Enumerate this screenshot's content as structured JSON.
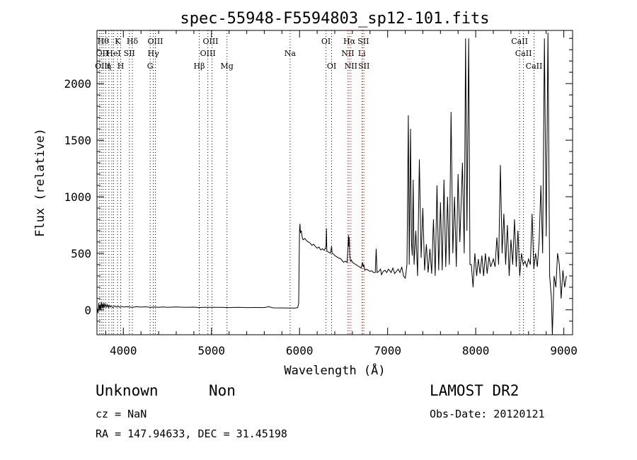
{
  "chart_data": {
    "type": "line",
    "title": "spec-55948-F5594803_sp12-101.fits",
    "xlabel": "Wavelength (Å)",
    "ylabel": "Flux (relative)",
    "xlim": [
      3700,
      9100
    ],
    "ylim": [
      -220,
      2470
    ],
    "xticks": [
      4000,
      5000,
      6000,
      7000,
      8000,
      9000
    ],
    "yticks": [
      0,
      500,
      1000,
      1500,
      2000
    ],
    "grid": false,
    "series": [
      {
        "color": "#000000",
        "points": [
          [
            3705,
            10
          ],
          [
            3712,
            -30
          ],
          [
            3720,
            60
          ],
          [
            3728,
            0
          ],
          [
            3735,
            45
          ],
          [
            3742,
            -5
          ],
          [
            3750,
            70
          ],
          [
            3758,
            15
          ],
          [
            3765,
            55
          ],
          [
            3772,
            10
          ],
          [
            3780,
            60
          ],
          [
            3790,
            20
          ],
          [
            3800,
            50
          ],
          [
            3810,
            25
          ],
          [
            3820,
            45
          ],
          [
            3830,
            20
          ],
          [
            3840,
            40
          ],
          [
            3850,
            25
          ],
          [
            3860,
            35
          ],
          [
            3880,
            20
          ],
          [
            3900,
            35
          ],
          [
            3920,
            25
          ],
          [
            3940,
            32
          ],
          [
            3960,
            22
          ],
          [
            3980,
            30
          ],
          [
            4000,
            25
          ],
          [
            4050,
            28
          ],
          [
            4100,
            22
          ],
          [
            4150,
            28
          ],
          [
            4200,
            24
          ],
          [
            4250,
            27
          ],
          [
            4300,
            23
          ],
          [
            4350,
            26
          ],
          [
            4400,
            22
          ],
          [
            4450,
            25
          ],
          [
            4500,
            23
          ],
          [
            4600,
            25
          ],
          [
            4700,
            22
          ],
          [
            4800,
            24
          ],
          [
            4860,
            20
          ],
          [
            4900,
            23
          ],
          [
            5000,
            22
          ],
          [
            5100,
            23
          ],
          [
            5200,
            20
          ],
          [
            5300,
            22
          ],
          [
            5400,
            20
          ],
          [
            5500,
            21
          ],
          [
            5600,
            20
          ],
          [
            5650,
            28
          ],
          [
            5700,
            18
          ],
          [
            5800,
            17
          ],
          [
            5900,
            16
          ],
          [
            5950,
            15
          ],
          [
            5980,
            20
          ],
          [
            5990,
            60
          ],
          [
            5995,
            400
          ],
          [
            6000,
            700
          ],
          [
            6005,
            760
          ],
          [
            6010,
            680
          ],
          [
            6020,
            700
          ],
          [
            6030,
            640
          ],
          [
            6040,
            620
          ],
          [
            6060,
            630
          ],
          [
            6080,
            610
          ],
          [
            6100,
            600
          ],
          [
            6120,
            590
          ],
          [
            6140,
            570
          ],
          [
            6160,
            580
          ],
          [
            6180,
            560
          ],
          [
            6200,
            545
          ],
          [
            6220,
            555
          ],
          [
            6240,
            530
          ],
          [
            6260,
            540
          ],
          [
            6280,
            525
          ],
          [
            6300,
            560
          ],
          [
            6305,
            720
          ],
          [
            6310,
            520
          ],
          [
            6330,
            510
          ],
          [
            6350,
            500
          ],
          [
            6364,
            560
          ],
          [
            6370,
            500
          ],
          [
            6390,
            490
          ],
          [
            6400,
            480
          ],
          [
            6420,
            470
          ],
          [
            6440,
            460
          ],
          [
            6460,
            455
          ],
          [
            6480,
            440
          ],
          [
            6500,
            420
          ],
          [
            6520,
            430
          ],
          [
            6540,
            420
          ],
          [
            6550,
            550
          ],
          [
            6555,
            660
          ],
          [
            6560,
            560
          ],
          [
            6565,
            640
          ],
          [
            6570,
            480
          ],
          [
            6580,
            430
          ],
          [
            6590,
            440
          ],
          [
            6600,
            420
          ],
          [
            6620,
            410
          ],
          [
            6640,
            400
          ],
          [
            6660,
            390
          ],
          [
            6680,
            380
          ],
          [
            6700,
            370
          ],
          [
            6716,
            420
          ],
          [
            6722,
            380
          ],
          [
            6731,
            400
          ],
          [
            6740,
            350
          ],
          [
            6760,
            360
          ],
          [
            6780,
            350
          ],
          [
            6800,
            340
          ],
          [
            6820,
            345
          ],
          [
            6840,
            330
          ],
          [
            6860,
            330
          ],
          [
            6870,
            540
          ],
          [
            6880,
            330
          ],
          [
            6900,
            340
          ],
          [
            6920,
            360
          ],
          [
            6930,
            310
          ],
          [
            6950,
            340
          ],
          [
            6970,
            350
          ],
          [
            6990,
            330
          ],
          [
            7010,
            360
          ],
          [
            7040,
            330
          ],
          [
            7060,
            370
          ],
          [
            7080,
            320
          ],
          [
            7100,
            340
          ],
          [
            7120,
            360
          ],
          [
            7140,
            330
          ],
          [
            7160,
            380
          ],
          [
            7180,
            300
          ],
          [
            7200,
            280
          ],
          [
            7220,
            400
          ],
          [
            7235,
            1720
          ],
          [
            7245,
            400
          ],
          [
            7260,
            1600
          ],
          [
            7270,
            600
          ],
          [
            7280,
            480
          ],
          [
            7290,
            1150
          ],
          [
            7300,
            400
          ],
          [
            7320,
            700
          ],
          [
            7340,
            300
          ],
          [
            7360,
            1330
          ],
          [
            7380,
            460
          ],
          [
            7400,
            900
          ],
          [
            7420,
            350
          ],
          [
            7440,
            580
          ],
          [
            7460,
            330
          ],
          [
            7480,
            540
          ],
          [
            7500,
            320
          ],
          [
            7520,
            800
          ],
          [
            7540,
            300
          ],
          [
            7560,
            1100
          ],
          [
            7580,
            350
          ],
          [
            7600,
            950
          ],
          [
            7620,
            350
          ],
          [
            7640,
            1150
          ],
          [
            7660,
            380
          ],
          [
            7680,
            1000
          ],
          [
            7700,
            400
          ],
          [
            7720,
            1750
          ],
          [
            7740,
            500
          ],
          [
            7760,
            1000
          ],
          [
            7780,
            380
          ],
          [
            7800,
            1200
          ],
          [
            7820,
            600
          ],
          [
            7850,
            1300
          ],
          [
            7870,
            500
          ],
          [
            7885,
            2400
          ],
          [
            7900,
            700
          ],
          [
            7920,
            2400
          ],
          [
            7935,
            400
          ],
          [
            7950,
            400
          ],
          [
            7970,
            200
          ],
          [
            7990,
            500
          ],
          [
            8010,
            300
          ],
          [
            8030,
            450
          ],
          [
            8050,
            320
          ],
          [
            8070,
            480
          ],
          [
            8090,
            300
          ],
          [
            8110,
            500
          ],
          [
            8130,
            320
          ],
          [
            8150,
            470
          ],
          [
            8170,
            380
          ],
          [
            8200,
            450
          ],
          [
            8220,
            380
          ],
          [
            8240,
            640
          ],
          [
            8260,
            400
          ],
          [
            8280,
            1280
          ],
          [
            8300,
            500
          ],
          [
            8320,
            850
          ],
          [
            8340,
            400
          ],
          [
            8360,
            750
          ],
          [
            8380,
            300
          ],
          [
            8400,
            620
          ],
          [
            8420,
            400
          ],
          [
            8440,
            800
          ],
          [
            8460,
            380
          ],
          [
            8480,
            700
          ],
          [
            8500,
            300
          ],
          [
            8520,
            500
          ],
          [
            8540,
            400
          ],
          [
            8560,
            430
          ],
          [
            8580,
            380
          ],
          [
            8600,
            450
          ],
          [
            8620,
            400
          ],
          [
            8640,
            850
          ],
          [
            8660,
            360
          ],
          [
            8680,
            500
          ],
          [
            8700,
            380
          ],
          [
            8720,
            600
          ],
          [
            8740,
            1100
          ],
          [
            8760,
            500
          ],
          [
            8780,
            2400
          ],
          [
            8800,
            650
          ],
          [
            8820,
            2450
          ],
          [
            8840,
            300
          ],
          [
            8860,
            100
          ],
          [
            8870,
            -230
          ],
          [
            8890,
            300
          ],
          [
            8910,
            200
          ],
          [
            8930,
            500
          ],
          [
            8950,
            400
          ],
          [
            8970,
            100
          ],
          [
            8990,
            350
          ],
          [
            9010,
            200
          ],
          [
            9030,
            300
          ]
        ]
      }
    ],
    "lines": [
      {
        "wl": 3730,
        "color": "#000000"
      },
      {
        "wl": 3750,
        "color": "#000000"
      },
      {
        "wl": 3771,
        "color": "#000000"
      },
      {
        "wl": 3798,
        "color": "#000000"
      },
      {
        "wl": 3835,
        "color": "#000000"
      },
      {
        "wl": 3869,
        "color": "#000000"
      },
      {
        "wl": 3889,
        "color": "#000000"
      },
      {
        "wl": 3934,
        "color": "#000000"
      },
      {
        "wl": 3969,
        "color": "#000000"
      },
      {
        "wl": 4068,
        "color": "#000000"
      },
      {
        "wl": 4102,
        "color": "#000000"
      },
      {
        "wl": 4304,
        "color": "#000000"
      },
      {
        "wl": 4340,
        "color": "#000000"
      },
      {
        "wl": 4363,
        "color": "#000000"
      },
      {
        "wl": 4861,
        "color": "#000000"
      },
      {
        "wl": 4959,
        "color": "#000000"
      },
      {
        "wl": 5007,
        "color": "#000000"
      },
      {
        "wl": 5176,
        "color": "#000000"
      },
      {
        "wl": 5893,
        "color": "#000000"
      },
      {
        "wl": 6300,
        "color": "#000000"
      },
      {
        "wl": 6364,
        "color": "#000000"
      },
      {
        "wl": 6548,
        "color": "#c00000"
      },
      {
        "wl": 6563,
        "color": "#c00000"
      },
      {
        "wl": 6583,
        "color": "#c00000"
      },
      {
        "wl": 6708,
        "color": "#c00000"
      },
      {
        "wl": 6716,
        "color": "#c00000"
      },
      {
        "wl": 6731,
        "color": "#c00000"
      },
      {
        "wl": 8498,
        "color": "#000000"
      },
      {
        "wl": 8542,
        "color": "#000000"
      },
      {
        "wl": 8662,
        "color": "#000000"
      }
    ],
    "annotations": [
      {
        "text": "Hθ",
        "wl": 3770,
        "row": 1
      },
      {
        "text": "K",
        "wl": 3935,
        "row": 1
      },
      {
        "text": "Hδ",
        "wl": 4102,
        "row": 1
      },
      {
        "text": "OIII",
        "wl": 4363,
        "row": 1
      },
      {
        "text": "OIII",
        "wl": 4990,
        "row": 1
      },
      {
        "text": "OI",
        "wl": 6300,
        "row": 1
      },
      {
        "text": "Hα",
        "wl": 6565,
        "row": 1
      },
      {
        "text": "SII",
        "wl": 6725,
        "row": 1
      },
      {
        "text": "CaII",
        "wl": 8498,
        "row": 1
      },
      {
        "text": "OII",
        "wl": 3760,
        "row": 2
      },
      {
        "text": "HeI",
        "wl": 3889,
        "row": 2
      },
      {
        "text": "SII",
        "wl": 4068,
        "row": 2
      },
      {
        "text": "Hγ",
        "wl": 4340,
        "row": 2
      },
      {
        "text": "OIII",
        "wl": 4959,
        "row": 2
      },
      {
        "text": "Na",
        "wl": 5893,
        "row": 2
      },
      {
        "text": "NII",
        "wl": 6548,
        "row": 2
      },
      {
        "text": "Li",
        "wl": 6708,
        "row": 2
      },
      {
        "text": "CaII",
        "wl": 8542,
        "row": 2
      },
      {
        "text": "OIII",
        "wl": 3765,
        "row": 3
      },
      {
        "text": "η",
        "wl": 3835,
        "row": 3
      },
      {
        "text": "H",
        "wl": 3969,
        "row": 3
      },
      {
        "text": "G",
        "wl": 4304,
        "row": 3
      },
      {
        "text": "Hβ",
        "wl": 4861,
        "row": 3
      },
      {
        "text": "Mg",
        "wl": 5176,
        "row": 3
      },
      {
        "text": "OI",
        "wl": 6364,
        "row": 3
      },
      {
        "text": "NII",
        "wl": 6583,
        "row": 3
      },
      {
        "text": "SII",
        "wl": 6731,
        "row": 3
      },
      {
        "text": "CaII",
        "wl": 8662,
        "row": 3
      }
    ]
  },
  "footer": {
    "class_label": "Unknown",
    "subclass_label": "Non",
    "survey": "LAMOST DR2",
    "cz": "cz = NaN",
    "obs_date": "Obs-Date: 20120121",
    "coords": "RA = 147.94633, DEC =  31.45198"
  }
}
